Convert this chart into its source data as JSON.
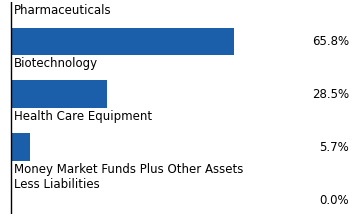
{
  "categories": [
    "Pharmaceuticals",
    "Biotechnology",
    "Health Care Equipment",
    "Money Market Funds Plus Other Assets\nLess Liabilities"
  ],
  "values": [
    65.8,
    28.5,
    5.7,
    0.0
  ],
  "labels": [
    "65.8%",
    "28.5%",
    "5.7%",
    "0.0%"
  ],
  "bar_color": "#1b5faa",
  "max_val": 75,
  "background_color": "#ffffff",
  "label_fontsize": 8.5,
  "value_fontsize": 8.5
}
